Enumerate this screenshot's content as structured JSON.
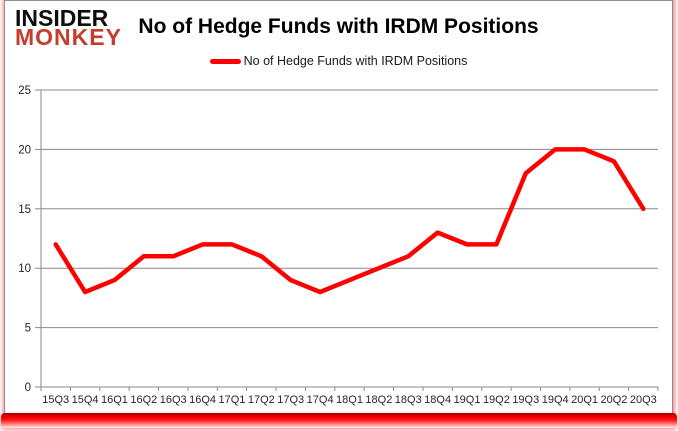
{
  "brand": {
    "line1": "INSIDER",
    "line2": "MONKEY"
  },
  "header": {
    "title": "No of Hedge Funds with IRDM Positions"
  },
  "legend": {
    "label": "No of Hedge Funds with IRDM Positions"
  },
  "chart_data": {
    "type": "line",
    "title": "No of Hedge Funds with IRDM Positions",
    "categories": [
      "15Q3",
      "15Q4",
      "16Q1",
      "16Q2",
      "16Q3",
      "16Q4",
      "17Q1",
      "17Q2",
      "17Q3",
      "17Q4",
      "18Q1",
      "18Q2",
      "18Q3",
      "18Q4",
      "19Q1",
      "19Q2",
      "19Q3",
      "19Q4",
      "20Q1",
      "20Q2",
      "20Q3"
    ],
    "series": [
      {
        "name": "No of Hedge Funds with IRDM Positions",
        "color": "#ff0000",
        "values": [
          12,
          8,
          9,
          11,
          11,
          12,
          12,
          11,
          9,
          8,
          9,
          10,
          11,
          13,
          12,
          12,
          18,
          20,
          20,
          19,
          15
        ]
      }
    ],
    "xlabel": "",
    "ylabel": "",
    "ylim": [
      0,
      25
    ],
    "yticks": [
      0,
      5,
      10,
      15,
      20,
      25
    ],
    "grid": true,
    "legend_position": "top"
  },
  "colors": {
    "series_line": "#ff0000",
    "gridline": "#8a8a8a",
    "axis_text": "#262626",
    "brand_black": "#0d0d0d",
    "brand_red": "#c43e2e",
    "border": "#8f8f8f",
    "footer_bar": "#ff0000"
  }
}
